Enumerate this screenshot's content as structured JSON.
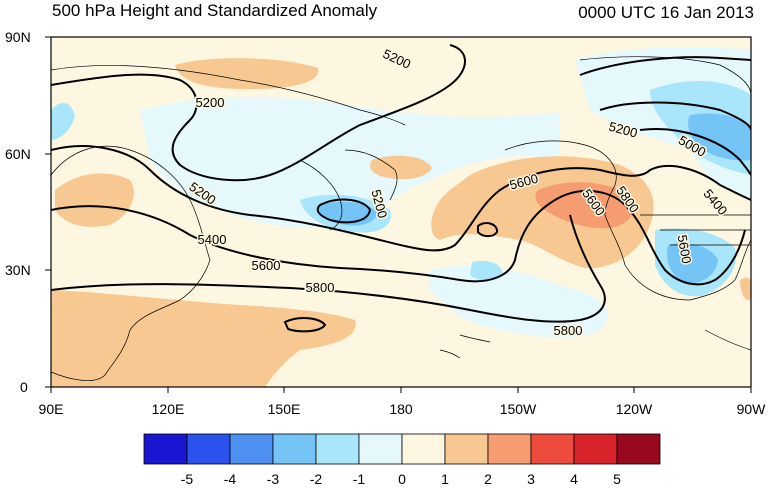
{
  "title_left": "500 hPa Height and Standardized Anomaly",
  "title_right": "0000 UTC 16 Jan 2013",
  "y_axis": {
    "ticks": [
      {
        "label": "90N",
        "lat": 90
      },
      {
        "label": "60N",
        "lat": 60
      },
      {
        "label": "30N",
        "lat": 30
      },
      {
        "label": "0",
        "lat": 0
      }
    ]
  },
  "x_axis": {
    "ticks": [
      {
        "label": "90E",
        "lon": 90
      },
      {
        "label": "120E",
        "lon": 120
      },
      {
        "label": "150E",
        "lon": 150
      },
      {
        "label": "180",
        "lon": 180
      },
      {
        "label": "150W",
        "lon": 210
      },
      {
        "label": "120W",
        "lon": 240
      },
      {
        "label": "90W",
        "lon": 270
      }
    ]
  },
  "contour_labels": [
    "5200",
    "5200",
    "5200",
    "5200",
    "5200",
    "5400",
    "5400",
    "5600",
    "5600",
    "5600",
    "5800",
    "5800",
    "5800",
    "5600",
    "5000"
  ],
  "colorbar": {
    "labels": [
      "-5",
      "-4",
      "-3",
      "-2",
      "-1",
      "0",
      "1",
      "2",
      "3",
      "4",
      "5"
    ],
    "colors": [
      "#1a16d2",
      "#2c52ee",
      "#4e8ff2",
      "#75c4f6",
      "#a9e6fb",
      "#e5f9fd",
      "#fdf7e1",
      "#f7c892",
      "#f59c70",
      "#ee4b3f",
      "#d8232a",
      "#98091f"
    ]
  },
  "colors": {
    "neutral_fill": "#fdf7e1",
    "land_outline": "#000000"
  }
}
